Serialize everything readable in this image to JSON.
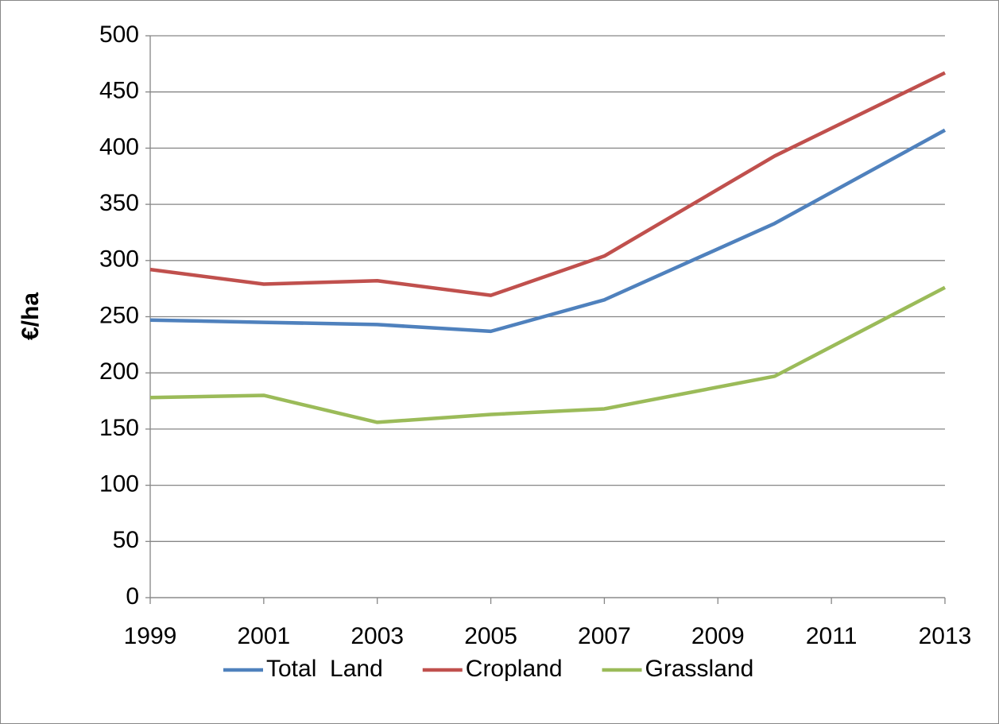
{
  "chart_data": {
    "type": "line",
    "y_label": "€/ha",
    "x": [
      1999,
      2001,
      2003,
      2005,
      2007,
      2010,
      2013
    ],
    "xlim": [
      1999,
      2013
    ],
    "xticks": [
      1999,
      2001,
      2003,
      2005,
      2007,
      2009,
      2011,
      2013
    ],
    "ylim": [
      0,
      500
    ],
    "yticks": [
      0,
      50,
      100,
      150,
      200,
      250,
      300,
      350,
      400,
      450,
      500
    ],
    "grid": true,
    "legend": "bottom",
    "series": [
      {
        "name": "Total  Land",
        "color": "#4f81bd",
        "values": [
          247,
          245,
          243,
          237,
          265,
          333,
          416
        ]
      },
      {
        "name": "Cropland",
        "color": "#c0504d",
        "values": [
          292,
          279,
          282,
          269,
          304,
          393,
          467
        ]
      },
      {
        "name": "Grassland",
        "color": "#9bbb59",
        "values": [
          178,
          180,
          156,
          163,
          168,
          197,
          276
        ]
      }
    ]
  }
}
